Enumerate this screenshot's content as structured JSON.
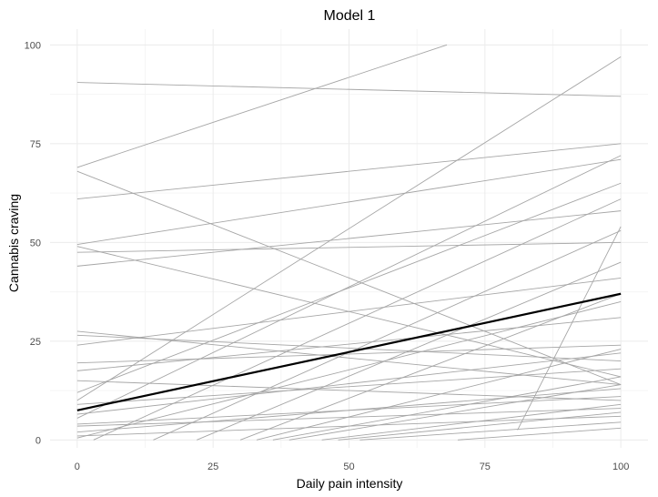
{
  "chart_data": {
    "type": "line",
    "title": "Model 1",
    "xlabel": "Daily pain intensity",
    "ylabel": "Cannabis craving",
    "xlim": [
      -5,
      105
    ],
    "ylim": [
      -2,
      104
    ],
    "x_ticks": [
      0,
      25,
      50,
      75,
      100
    ],
    "y_ticks": [
      0,
      25,
      50,
      75,
      100
    ],
    "x_tick_labels": [
      "0",
      "25",
      "50",
      "75",
      "100"
    ],
    "y_tick_labels": [
      "0",
      "25",
      "50",
      "75",
      "100"
    ],
    "grid": true,
    "legend": "none",
    "colors": {
      "individual": "#a6a6a6",
      "average": "#000000",
      "grid_major": "#ebebeb",
      "grid_minor": "#f5f5f5",
      "background": "#ffffff"
    },
    "average_series": {
      "x": [
        0,
        100
      ],
      "y": [
        7.5,
        37
      ]
    },
    "individual_series": [
      {
        "x": [
          0,
          68
        ],
        "y": [
          69,
          100
        ]
      },
      {
        "x": [
          0,
          100
        ],
        "y": [
          90.5,
          87
        ]
      },
      {
        "x": [
          0,
          100
        ],
        "y": [
          68,
          14
        ]
      },
      {
        "x": [
          0,
          100
        ],
        "y": [
          61,
          75
        ]
      },
      {
        "x": [
          0,
          100
        ],
        "y": [
          49.5,
          71
        ]
      },
      {
        "x": [
          0,
          100
        ],
        "y": [
          49,
          16
        ]
      },
      {
        "x": [
          0,
          100
        ],
        "y": [
          44,
          58
        ]
      },
      {
        "x": [
          0,
          100
        ],
        "y": [
          47.5,
          50
        ]
      },
      {
        "x": [
          0,
          100
        ],
        "y": [
          27.5,
          14
        ]
      },
      {
        "x": [
          0,
          100
        ],
        "y": [
          26.5,
          20
        ]
      },
      {
        "x": [
          0,
          100
        ],
        "y": [
          19.5,
          24
        ]
      },
      {
        "x": [
          0,
          100
        ],
        "y": [
          17.5,
          31
        ]
      },
      {
        "x": [
          0,
          100
        ],
        "y": [
          12,
          65
        ]
      },
      {
        "x": [
          0,
          100
        ],
        "y": [
          10,
          97
        ]
      },
      {
        "x": [
          0,
          100
        ],
        "y": [
          5.5,
          72
        ]
      },
      {
        "x": [
          0,
          100
        ],
        "y": [
          4,
          11
        ]
      },
      {
        "x": [
          0,
          100
        ],
        "y": [
          3.5,
          8
        ]
      },
      {
        "x": [
          0,
          100
        ],
        "y": [
          2,
          13
        ]
      },
      {
        "x": [
          0,
          100
        ],
        "y": [
          1,
          6
        ]
      },
      {
        "x": [
          0,
          100
        ],
        "y": [
          0.5,
          35
        ]
      },
      {
        "x": [
          0,
          100
        ],
        "y": [
          9,
          18
        ]
      },
      {
        "x": [
          0,
          100
        ],
        "y": [
          6.5,
          22
        ]
      },
      {
        "x": [
          0,
          100
        ],
        "y": [
          24,
          41
        ]
      },
      {
        "x": [
          0,
          100
        ],
        "y": [
          15,
          10
        ]
      },
      {
        "x": [
          3,
          100
        ],
        "y": [
          0,
          61
        ]
      },
      {
        "x": [
          14,
          100
        ],
        "y": [
          0,
          53
        ]
      },
      {
        "x": [
          22,
          100
        ],
        "y": [
          0,
          45
        ]
      },
      {
        "x": [
          30,
          100
        ],
        "y": [
          0,
          37
        ]
      },
      {
        "x": [
          33,
          100
        ],
        "y": [
          0,
          23
        ]
      },
      {
        "x": [
          36,
          100
        ],
        "y": [
          0,
          16
        ]
      },
      {
        "x": [
          39,
          100
        ],
        "y": [
          0,
          14
        ]
      },
      {
        "x": [
          45,
          100
        ],
        "y": [
          0,
          9
        ]
      },
      {
        "x": [
          48,
          100
        ],
        "y": [
          0,
          7
        ]
      },
      {
        "x": [
          52,
          100
        ],
        "y": [
          0,
          4.5
        ]
      },
      {
        "x": [
          70,
          100
        ],
        "y": [
          0,
          3
        ]
      },
      {
        "x": [
          81,
          100
        ],
        "y": [
          2.5,
          54
        ]
      }
    ]
  }
}
